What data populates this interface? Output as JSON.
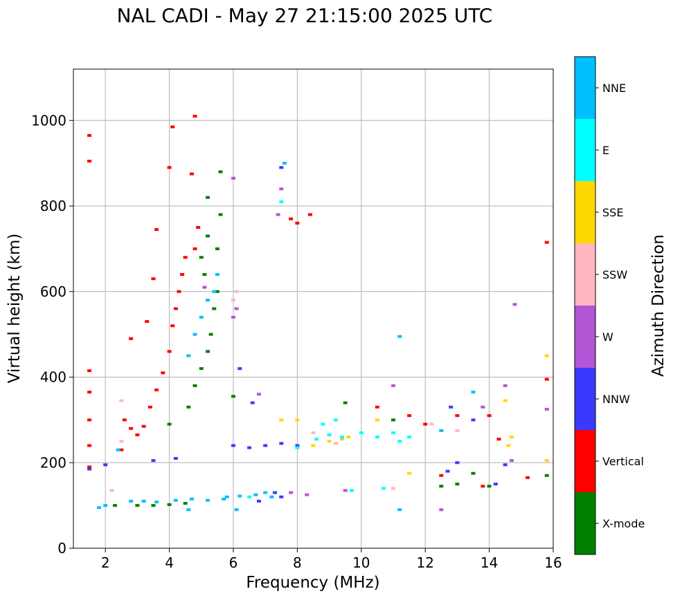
{
  "chart_data": {
    "type": "scatter",
    "title": "NAL CADI - May 27 21:15:00 2025 UTC",
    "xlabel": "Frequency (MHz)",
    "ylabel": "Virtual height (km)",
    "xlim": [
      1,
      16
    ],
    "ylim": [
      0,
      1120
    ],
    "xticks": [
      2,
      4,
      6,
      8,
      10,
      12,
      14,
      16
    ],
    "yticks": [
      0,
      200,
      400,
      600,
      800,
      1000
    ],
    "grid": true,
    "colorbar": {
      "label": "Azimuth Direction",
      "categories": [
        {
          "name": "X-mode",
          "color": "#008000"
        },
        {
          "name": "Vertical",
          "color": "#ff0000"
        },
        {
          "name": "NNW",
          "color": "#3a3aff"
        },
        {
          "name": "W",
          "color": "#b455d6"
        },
        {
          "name": "SSW",
          "color": "#ffb6c1"
        },
        {
          "name": "SSE",
          "color": "#ffd700"
        },
        {
          "name": "E",
          "color": "#00ffff"
        },
        {
          "name": "NNE",
          "color": "#00bfff"
        }
      ]
    },
    "series": [
      {
        "name": "Vertical",
        "points": [
          [
            1.5,
            965
          ],
          [
            1.5,
            905
          ],
          [
            1.5,
            415
          ],
          [
            1.5,
            365
          ],
          [
            1.5,
            300
          ],
          [
            1.5,
            240
          ],
          [
            1.5,
            190
          ],
          [
            2.6,
            300
          ],
          [
            2.8,
            280
          ],
          [
            3.0,
            265
          ],
          [
            3.2,
            285
          ],
          [
            3.4,
            330
          ],
          [
            3.6,
            370
          ],
          [
            3.8,
            410
          ],
          [
            4.0,
            460
          ],
          [
            4.1,
            520
          ],
          [
            4.2,
            560
          ],
          [
            4.3,
            600
          ],
          [
            4.4,
            640
          ],
          [
            4.5,
            680
          ],
          [
            4.8,
            700
          ],
          [
            4.9,
            750
          ],
          [
            4.1,
            985
          ],
          [
            4.8,
            1010
          ],
          [
            4.7,
            875
          ],
          [
            4.0,
            890
          ],
          [
            3.3,
            530
          ],
          [
            2.8,
            490
          ],
          [
            3.6,
            745
          ],
          [
            3.5,
            630
          ],
          [
            7.8,
            770
          ],
          [
            8.0,
            760
          ],
          [
            8.4,
            780
          ],
          [
            10.5,
            330
          ],
          [
            11.5,
            310
          ],
          [
            12.0,
            290
          ],
          [
            13.0,
            310
          ],
          [
            14.0,
            310
          ],
          [
            14.3,
            255
          ],
          [
            15.8,
            715
          ],
          [
            15.8,
            395
          ],
          [
            15.2,
            165
          ],
          [
            13.8,
            145
          ],
          [
            12.5,
            170
          ],
          [
            2.5,
            230
          ]
        ]
      },
      {
        "name": "X-mode",
        "points": [
          [
            4.6,
            330
          ],
          [
            4.8,
            380
          ],
          [
            5.0,
            420
          ],
          [
            5.2,
            460
          ],
          [
            5.3,
            500
          ],
          [
            5.4,
            560
          ],
          [
            5.5,
            600
          ],
          [
            5.5,
            700
          ],
          [
            5.6,
            780
          ],
          [
            5.6,
            880
          ],
          [
            5.2,
            730
          ],
          [
            5.0,
            680
          ],
          [
            5.2,
            820
          ],
          [
            2.3,
            100
          ],
          [
            3.0,
            100
          ],
          [
            3.5,
            100
          ],
          [
            4.0,
            102
          ],
          [
            4.5,
            105
          ],
          [
            14.0,
            145
          ],
          [
            13.0,
            150
          ],
          [
            13.5,
            175
          ],
          [
            15.8,
            170
          ],
          [
            12.5,
            145
          ],
          [
            11.0,
            300
          ],
          [
            9.5,
            340
          ],
          [
            4.0,
            290
          ],
          [
            6.0,
            355
          ],
          [
            5.1,
            640
          ]
        ]
      },
      {
        "name": "NNW",
        "points": [
          [
            6.0,
            240
          ],
          [
            6.5,
            235
          ],
          [
            7.0,
            240
          ],
          [
            7.5,
            245
          ],
          [
            8.0,
            240
          ],
          [
            6.8,
            110
          ],
          [
            7.5,
            120
          ],
          [
            4.2,
            210
          ],
          [
            3.5,
            205
          ],
          [
            6.2,
            420
          ],
          [
            7.5,
            890
          ],
          [
            13.5,
            300
          ],
          [
            14.5,
            195
          ],
          [
            14.2,
            150
          ],
          [
            13.0,
            200
          ],
          [
            12.8,
            330
          ],
          [
            1.5,
            185
          ],
          [
            2.0,
            195
          ],
          [
            7.3,
            130
          ],
          [
            12.7,
            180
          ],
          [
            6.6,
            340
          ]
        ]
      },
      {
        "name": "W",
        "points": [
          [
            6.0,
            540
          ],
          [
            6.1,
            560
          ],
          [
            6.0,
            865
          ],
          [
            7.5,
            840
          ],
          [
            7.4,
            780
          ],
          [
            14.8,
            570
          ],
          [
            15.8,
            325
          ],
          [
            14.5,
            380
          ],
          [
            14.7,
            205
          ],
          [
            13.8,
            330
          ],
          [
            12.5,
            90
          ],
          [
            9.5,
            135
          ],
          [
            8.3,
            125
          ],
          [
            7.8,
            130
          ],
          [
            11.0,
            380
          ],
          [
            5.1,
            610
          ],
          [
            6.8,
            360
          ]
        ]
      },
      {
        "name": "SSW",
        "points": [
          [
            6.1,
            600
          ],
          [
            6.0,
            580
          ],
          [
            8.5,
            270
          ],
          [
            9.0,
            265
          ],
          [
            11.0,
            140
          ],
          [
            12.2,
            290
          ],
          [
            12.5,
            275
          ],
          [
            13.0,
            275
          ],
          [
            2.5,
            345
          ],
          [
            2.5,
            250
          ],
          [
            2.2,
            135
          ],
          [
            9.2,
            245
          ]
        ]
      },
      {
        "name": "SSE",
        "points": [
          [
            8.5,
            240
          ],
          [
            9.0,
            250
          ],
          [
            9.4,
            255
          ],
          [
            9.6,
            260
          ],
          [
            10.5,
            300
          ],
          [
            11.5,
            175
          ],
          [
            14.5,
            345
          ],
          [
            14.7,
            260
          ],
          [
            14.6,
            240
          ],
          [
            15.8,
            450
          ],
          [
            15.8,
            205
          ],
          [
            7.5,
            300
          ],
          [
            8.0,
            300
          ]
        ]
      },
      {
        "name": "E",
        "points": [
          [
            8.6,
            255
          ],
          [
            9.0,
            265
          ],
          [
            9.4,
            260
          ],
          [
            8.8,
            290
          ],
          [
            9.2,
            300
          ],
          [
            10.0,
            270
          ],
          [
            10.5,
            260
          ],
          [
            11.0,
            270
          ],
          [
            11.2,
            250
          ],
          [
            11.5,
            260
          ],
          [
            7.5,
            810
          ],
          [
            6.5,
            120
          ],
          [
            9.7,
            135
          ],
          [
            10.7,
            140
          ],
          [
            8.0,
            235
          ]
        ]
      },
      {
        "name": "NNE",
        "points": [
          [
            2.8,
            110
          ],
          [
            3.2,
            110
          ],
          [
            3.6,
            108
          ],
          [
            4.2,
            112
          ],
          [
            4.7,
            115
          ],
          [
            5.2,
            112
          ],
          [
            5.7,
            115
          ],
          [
            6.2,
            122
          ],
          [
            6.7,
            125
          ],
          [
            7.0,
            130
          ],
          [
            7.2,
            120
          ],
          [
            1.8,
            95
          ],
          [
            2.0,
            100
          ],
          [
            4.6,
            450
          ],
          [
            4.8,
            500
          ],
          [
            5.0,
            540
          ],
          [
            5.2,
            580
          ],
          [
            5.4,
            600
          ],
          [
            5.5,
            640
          ],
          [
            6.1,
            90
          ],
          [
            11.2,
            90
          ],
          [
            11.2,
            495
          ],
          [
            12.5,
            275
          ],
          [
            13.5,
            365
          ],
          [
            7.6,
            900
          ],
          [
            4.6,
            90
          ],
          [
            2.4,
            230
          ],
          [
            5.8,
            120
          ]
        ]
      }
    ]
  }
}
